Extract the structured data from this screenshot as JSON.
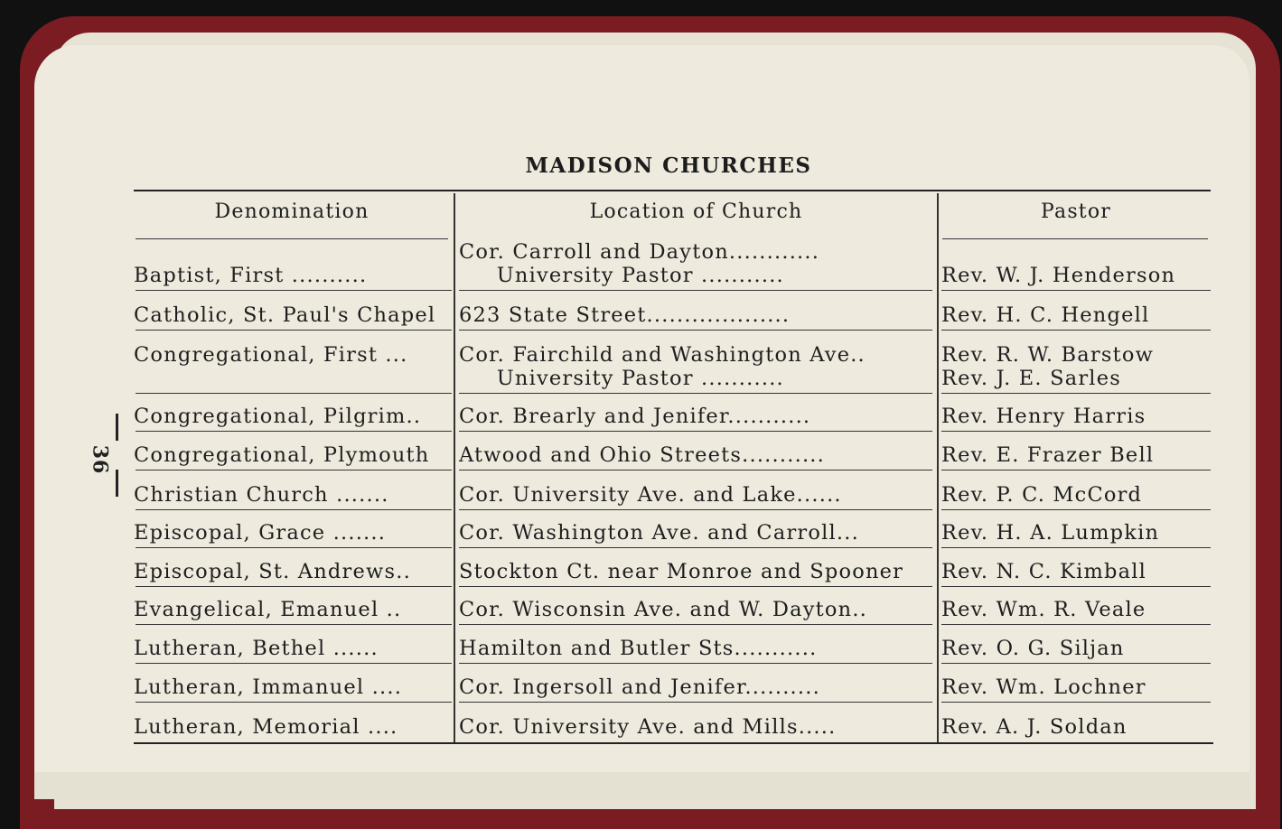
{
  "title": "MADISON CHURCHES",
  "page_number": "36",
  "headers": [
    "Denomination",
    "Location of Church",
    "Pastor"
  ],
  "rows": [
    {
      "denomination": "Baptist, First ..........",
      "location": "Cor. Carroll and Dayton............\n     University Pastor ...........",
      "pastor": "\nRev. W. J. Henderson"
    },
    {
      "denomination": "Catholic, St. Paul's Chapel",
      "location": "623 State Street...................",
      "pastor": "Rev. H. C. Hengell"
    },
    {
      "denomination": "Congregational, First ...\n ",
      "location": "Cor. Fairchild and Washington Ave..\n     University Pastor ...........",
      "pastor": "Rev. R. W. Barstow\nRev. J. E. Sarles"
    },
    {
      "denomination": "Congregational, Pilgrim..",
      "location": "Cor. Brearly and Jenifer...........",
      "pastor": "Rev. Henry Harris"
    },
    {
      "denomination": "Congregational, Plymouth",
      "location": "Atwood and Ohio Streets...........",
      "pastor": "Rev. E. Frazer Bell"
    },
    {
      "denomination": "Christian Church .......",
      "location": "Cor. University Ave. and Lake......",
      "pastor": "Rev. P. C. McCord"
    },
    {
      "denomination": "Episcopal, Grace .......",
      "location": "Cor. Washington Ave. and Carroll...",
      "pastor": "Rev. H. A. Lumpkin"
    },
    {
      "denomination": "Episcopal, St. Andrews..",
      "location": "Stockton Ct. near Monroe and Spooner",
      "pastor": "Rev. N. C. Kimball"
    },
    {
      "denomination": "Evangelical, Emanuel ..",
      "location": "Cor. Wisconsin Ave. and W. Dayton..",
      "pastor": "Rev. Wm. R. Veale"
    },
    {
      "denomination": "Lutheran, Bethel ......",
      "location": "Hamilton and Butler Sts...........",
      "pastor": "Rev. O. G. Siljan"
    },
    {
      "denomination": "Lutheran, Immanuel ....",
      "location": "Cor. Ingersoll and Jenifer..........",
      "pastor": "Rev. Wm. Lochner"
    },
    {
      "denomination": "Lutheran, Memorial ....",
      "location": "Cor. University Ave. and Mills.....",
      "pastor": "Rev. A. J. Soldan"
    }
  ]
}
